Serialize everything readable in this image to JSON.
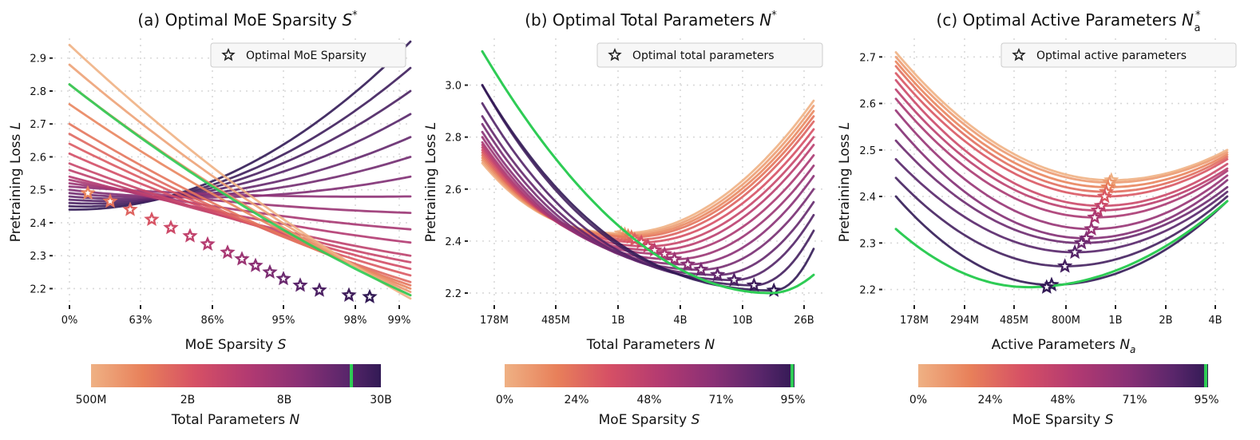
{
  "highlight_color": "#2ecc55",
  "colormap": [
    "#efb184",
    "#e8805a",
    "#d65065",
    "#b33a71",
    "#8a3075",
    "#5a266b",
    "#321a55"
  ],
  "chart_data": [
    {
      "type": "line",
      "title_main": "(a) Optimal MoE Sparsity ",
      "title_sym": "S",
      "title_sup": "*",
      "xlabel_main": "MoE Sparsity ",
      "xlabel_sym": "S",
      "ylabel_main": "Pretraining Loss ",
      "ylabel_sym": "L",
      "x_ticks": [
        "0%",
        "63%",
        "86%",
        "95%",
        "98%",
        "99%"
      ],
      "y_ticks": [
        "2.2",
        "2.3",
        "2.4",
        "2.5",
        "2.6",
        "2.7",
        "2.8",
        "2.9"
      ],
      "ylim": [
        2.155,
        2.96
      ],
      "legend": "Optimal MoE Sparsity",
      "legend_position": "top-right",
      "grid": true,
      "colorbar": {
        "ticks": [
          "500M",
          "2B",
          "8B",
          "30B"
        ],
        "label_main": "Total Parameters ",
        "label_sym": "N",
        "highlight_at": 0.9
      },
      "series_start": [
        2.44,
        2.45,
        2.46,
        2.47,
        2.48,
        2.49,
        2.5,
        2.51,
        2.52,
        2.53,
        2.54,
        2.56,
        2.58,
        2.61,
        2.64,
        2.67,
        2.7,
        2.76,
        2.82,
        2.88,
        2.94
      ],
      "series_end": [
        2.17,
        2.18,
        2.19,
        2.2,
        2.21,
        2.22,
        2.24,
        2.26,
        2.28,
        2.3,
        2.34,
        2.38,
        2.43,
        2.48,
        2.54,
        2.6,
        2.66,
        2.73,
        2.8,
        2.87,
        2.95
      ],
      "highlight_series": {
        "start": 2.82,
        "end": 2.18
      },
      "optimal_points_x": [
        "9%",
        "22%",
        "33%",
        "43%",
        "53%",
        "63%",
        "72%",
        "80%",
        "86%",
        "90%",
        "93%",
        "95%",
        "96.5%",
        "97.5%",
        "98.3%",
        "99%"
      ],
      "optimal_points_y": [
        2.49,
        2.465,
        2.44,
        2.41,
        2.385,
        2.36,
        2.335,
        2.31,
        2.29,
        2.27,
        2.25,
        2.23,
        2.21,
        2.195,
        2.18,
        2.175
      ]
    },
    {
      "type": "line",
      "title_main": "(b) Optimal Total Parameters ",
      "title_sym": "N",
      "title_sup": "*",
      "xlabel_main": "Total Parameters ",
      "xlabel_sym": "N",
      "ylabel_main": "Pretraining Loss ",
      "ylabel_sym": "L",
      "x_ticks": [
        "178M",
        "485M",
        "1B",
        "4B",
        "10B",
        "26B"
      ],
      "y_ticks": [
        "2.2",
        "2.4",
        "2.6",
        "2.8",
        "3.0"
      ],
      "ylim": [
        2.16,
        3.18
      ],
      "legend": "Optimal total parameters",
      "legend_position": "top-right",
      "grid": true,
      "colorbar": {
        "ticks": [
          "0%",
          "24%",
          "48%",
          "71%",
          "95%"
        ],
        "label_main": "MoE Sparsity ",
        "label_sym": "S",
        "highlight_at": 0.99
      },
      "series_min_x": [
        0.42,
        0.43,
        0.44,
        0.45,
        0.46,
        0.48,
        0.5,
        0.52,
        0.55,
        0.58,
        0.62,
        0.66,
        0.71,
        0.76,
        0.82,
        0.88
      ],
      "series_min_y": [
        2.43,
        2.425,
        2.42,
        2.415,
        2.405,
        2.395,
        2.38,
        2.365,
        2.35,
        2.33,
        2.31,
        2.29,
        2.27,
        2.25,
        2.23,
        2.21
      ],
      "series_start": [
        2.7,
        2.71,
        2.72,
        2.73,
        2.74,
        2.75,
        2.76,
        2.77,
        2.78,
        2.8,
        2.82,
        2.85,
        2.88,
        2.93,
        3.0
      ],
      "series_end": [
        2.94,
        2.92,
        2.9,
        2.88,
        2.86,
        2.83,
        2.8,
        2.77,
        2.73,
        2.69,
        2.65,
        2.6,
        2.55,
        2.5,
        2.44,
        2.37
      ],
      "highlight_series": {
        "start": 3.13,
        "min_x": 0.87,
        "min_y": 2.2,
        "end": 2.27
      }
    },
    {
      "type": "line",
      "title_main": "(c) Optimal Active Parameters ",
      "title_sym": "N",
      "title_sub": "a",
      "title_sup": "*",
      "xlabel_main": "Active Parameters ",
      "xlabel_sym": "N",
      "xlabel_sub": "a",
      "ylabel_main": "Pretraining Loss ",
      "ylabel_sym": "L",
      "x_ticks": [
        "178M",
        "294M",
        "485M",
        "800M",
        "1B",
        "2B",
        "4B"
      ],
      "y_ticks": [
        "2.2",
        "2.3",
        "2.4",
        "2.5",
        "2.6",
        "2.7"
      ],
      "ylim": [
        2.17,
        2.74
      ],
      "legend": "Optimal active parameters",
      "legend_position": "top-right",
      "grid": true,
      "colorbar": {
        "ticks": [
          "0%",
          "24%",
          "48%",
          "71%",
          "95%"
        ],
        "label_main": "MoE Sparsity ",
        "label_sym": "S",
        "highlight_at": 0.99
      },
      "series_start": [
        2.71,
        2.7,
        2.69,
        2.68,
        2.665,
        2.65,
        2.63,
        2.61,
        2.585,
        2.555,
        2.52,
        2.48,
        2.44,
        2.4
      ],
      "series_min_x": [
        0.65,
        0.645,
        0.64,
        0.635,
        0.63,
        0.62,
        0.61,
        0.6,
        0.59,
        0.575,
        0.56,
        0.54,
        0.51,
        0.47,
        0.42
      ],
      "series_min_y": [
        2.435,
        2.43,
        2.42,
        2.41,
        2.4,
        2.38,
        2.37,
        2.355,
        2.33,
        2.31,
        2.3,
        2.28,
        2.25,
        2.21
      ],
      "series_end": [
        2.5,
        2.495,
        2.49,
        2.485,
        2.48,
        2.47,
        2.46,
        2.455,
        2.445,
        2.435,
        2.42,
        2.41,
        2.4,
        2.39
      ],
      "highlight_series": {
        "start": 2.33,
        "min_x": 0.4,
        "min_y": 2.205,
        "end": 2.39
      }
    }
  ]
}
